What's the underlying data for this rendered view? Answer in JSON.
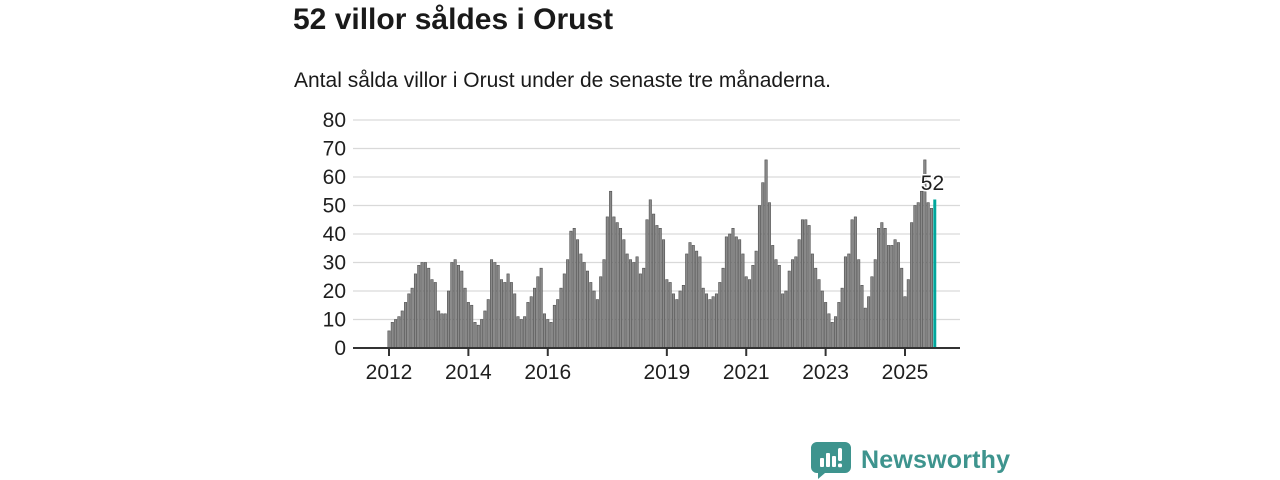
{
  "header": {
    "title": "52 villor såldes i Orust",
    "subtitle": "Antal sålda villor i Orust under de senaste tre månaderna."
  },
  "chart_data": {
    "type": "bar",
    "title": "52 villor såldes i Orust",
    "subtitle": "Antal sålda villor i Orust under de senaste tre månaderna.",
    "x_unit": "month",
    "x_start_year": 2012,
    "categories_note": "monthly bars from Jan 2012 onward, one bar per month",
    "values": [
      6,
      9,
      10,
      11,
      13,
      16,
      19,
      21,
      26,
      29,
      30,
      30,
      28,
      24,
      23,
      13,
      12,
      12,
      20,
      30,
      31,
      29,
      27,
      21,
      16,
      15,
      9,
      8,
      10,
      13,
      17,
      31,
      30,
      29,
      24,
      23,
      26,
      23,
      19,
      11,
      10,
      11,
      16,
      18,
      21,
      25,
      28,
      12,
      10,
      9,
      15,
      17,
      21,
      26,
      31,
      41,
      42,
      38,
      33,
      30,
      27,
      23,
      20,
      17,
      25,
      31,
      46,
      55,
      46,
      44,
      42,
      38,
      33,
      31,
      30,
      32,
      26,
      28,
      45,
      52,
      47,
      43,
      42,
      38,
      24,
      23,
      19,
      17,
      20,
      22,
      33,
      37,
      36,
      34,
      32,
      21,
      19,
      17,
      18,
      19,
      23,
      28,
      39,
      40,
      42,
      39,
      38,
      33,
      25,
      24,
      29,
      34,
      50,
      58,
      66,
      51,
      36,
      31,
      29,
      19,
      20,
      27,
      31,
      32,
      38,
      45,
      45,
      43,
      33,
      28,
      24,
      20,
      16,
      12,
      9,
      11,
      16,
      21,
      32,
      33,
      45,
      46,
      31,
      22,
      14,
      18,
      25,
      31,
      42,
      44,
      42,
      36,
      36,
      38,
      37,
      28,
      18,
      24,
      44,
      50,
      51,
      55,
      66,
      51,
      49,
      52
    ],
    "highlight_last_bar": true,
    "annotation": {
      "text": "52",
      "value": 52
    },
    "yticks": [
      0,
      10,
      20,
      30,
      40,
      50,
      60,
      70,
      80
    ],
    "ylim": [
      0,
      80
    ],
    "xticks": [
      2012,
      2014,
      2016,
      2019,
      2021,
      2023,
      2025
    ],
    "grid": true,
    "legend": "none",
    "colors": {
      "bar_fill": "#8a8a8a",
      "bar_stroke": "#4f4f4f",
      "highlight": "#00a69b",
      "gridline": "#d9d9d9",
      "axis": "#333333",
      "text": "#1f1f1f"
    }
  },
  "footer": {
    "brand": "Newsworthy",
    "brand_color": "#3e948e",
    "logo_icon": "speech-bubble-bar-chart-exclamation"
  }
}
